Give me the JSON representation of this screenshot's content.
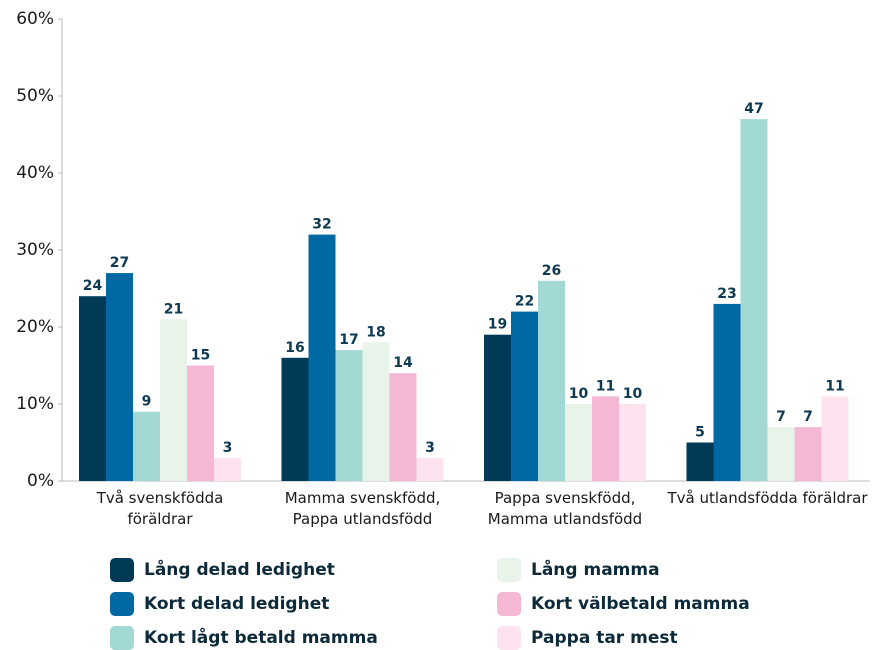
{
  "chart_data": {
    "type": "bar",
    "categories": [
      "Två svenskfödda\nföräldrar",
      "Mamma svenskfödd,\nPappa utlandsfödd",
      "Pappa svenskfödd,\nMamma utlandsfödd",
      "Två utlandsfödda föräldrar"
    ],
    "series": [
      {
        "name": "Lång delad ledighet",
        "color": "#003a57",
        "values": [
          24,
          16,
          19,
          5
        ]
      },
      {
        "name": "Kort delad ledighet",
        "color": "#0068a3",
        "values": [
          27,
          32,
          22,
          23
        ]
      },
      {
        "name": "Kort lågt betald mamma",
        "color": "#a3d9d4",
        "values": [
          9,
          17,
          26,
          47
        ]
      },
      {
        "name": "Lång mamma",
        "color": "#e8f3ea",
        "values": [
          21,
          18,
          10,
          7
        ]
      },
      {
        "name": "Kort välbetald mamma",
        "color": "#f4b8d5",
        "values": [
          15,
          14,
          11,
          7
        ]
      },
      {
        "name": "Pappa tar mest",
        "color": "#fce3ef",
        "values": [
          3,
          3,
          10,
          11
        ]
      }
    ],
    "ylim": [
      0,
      60
    ],
    "yticks": [
      {
        "value": 0,
        "label": "0%"
      },
      {
        "value": 10,
        "label": "10%"
      },
      {
        "value": 20,
        "label": "20%"
      },
      {
        "value": 30,
        "label": "30%"
      },
      {
        "value": 40,
        "label": "40%"
      },
      {
        "value": 50,
        "label": "50%"
      },
      {
        "value": 60,
        "label": "60%"
      }
    ],
    "legend": "bottom"
  }
}
